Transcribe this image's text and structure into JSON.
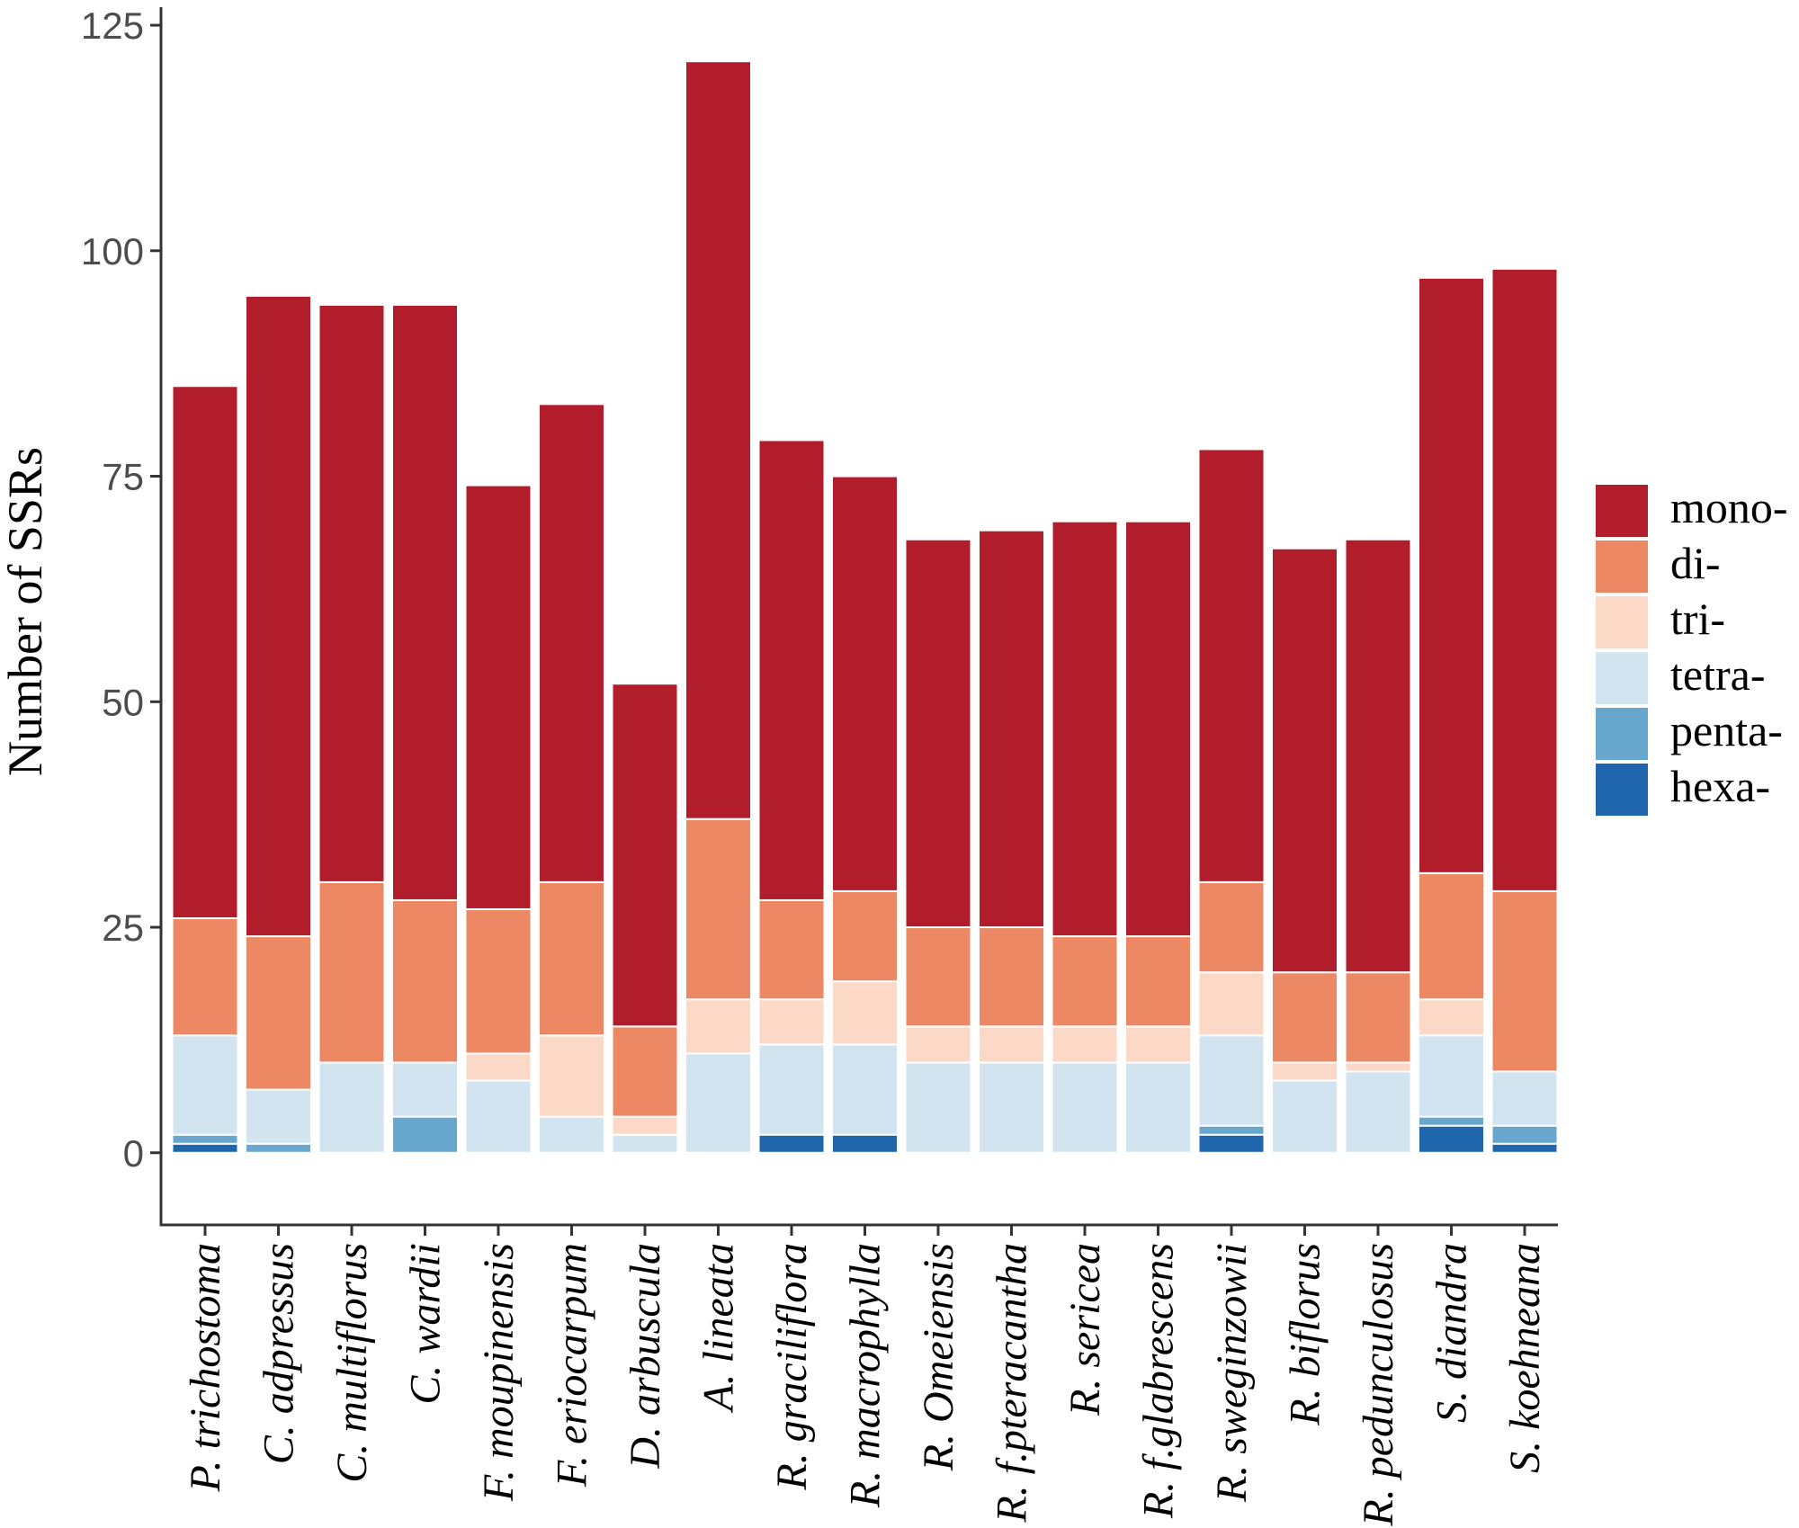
{
  "chart_data": {
    "type": "bar",
    "stacked": true,
    "title": "",
    "xlabel": "",
    "ylabel": "Number of SSRs",
    "ylim": [
      -8,
      127
    ],
    "yticks": [
      0,
      25,
      50,
      75,
      100,
      125
    ],
    "grid": false,
    "legend_position": "right",
    "categories": [
      "P. trichostoma",
      "C. adpressus",
      "C. multiflorus",
      "C. wardii",
      "F. moupinensis",
      "F. eriocarpum",
      "D. arbuscula",
      "A. lineata",
      "R. graciliflora",
      "R. macrophylla",
      "R. Omeiensis",
      "R. f.pteracantha",
      "R. sericea",
      "R. f.glabrescens",
      "R. sweginzowii",
      "R. biflorus",
      "R. pedunculosus",
      "S. diandra",
      "S. koehneana"
    ],
    "series": [
      {
        "name": "mono-",
        "color": "#b11d2b",
        "values": [
          59,
          71,
          64,
          66,
          47,
          53,
          38,
          84,
          51,
          46,
          43,
          44,
          46,
          46,
          48,
          47,
          48,
          66,
          69
        ]
      },
      {
        "name": "di-",
        "color": "#ed8864",
        "values": [
          13,
          17,
          20,
          18,
          16,
          17,
          10,
          20,
          11,
          10,
          11,
          11,
          10,
          10,
          10,
          10,
          10,
          14,
          20
        ]
      },
      {
        "name": "tri-",
        "color": "#fcd9c7",
        "values": [
          0,
          0,
          0,
          0,
          3,
          9,
          2,
          6,
          5,
          7,
          4,
          4,
          4,
          4,
          7,
          2,
          1,
          4,
          0
        ]
      },
      {
        "name": "tetra-",
        "color": "#d1e4f0",
        "values": [
          11,
          6,
          10,
          6,
          8,
          4,
          2,
          11,
          10,
          10,
          10,
          10,
          10,
          10,
          10,
          8,
          9,
          9,
          6
        ]
      },
      {
        "name": "penta-",
        "color": "#68a8cf",
        "values": [
          1,
          1,
          0,
          4,
          0,
          0,
          0,
          0,
          0,
          0,
          0,
          0,
          0,
          0,
          1,
          0,
          0,
          1,
          2
        ]
      },
      {
        "name": "hexa-",
        "color": "#2066ad",
        "values": [
          1,
          0,
          0,
          0,
          0,
          0,
          0,
          0,
          2,
          2,
          0,
          0,
          0,
          0,
          2,
          0,
          0,
          3,
          1
        ]
      }
    ]
  }
}
